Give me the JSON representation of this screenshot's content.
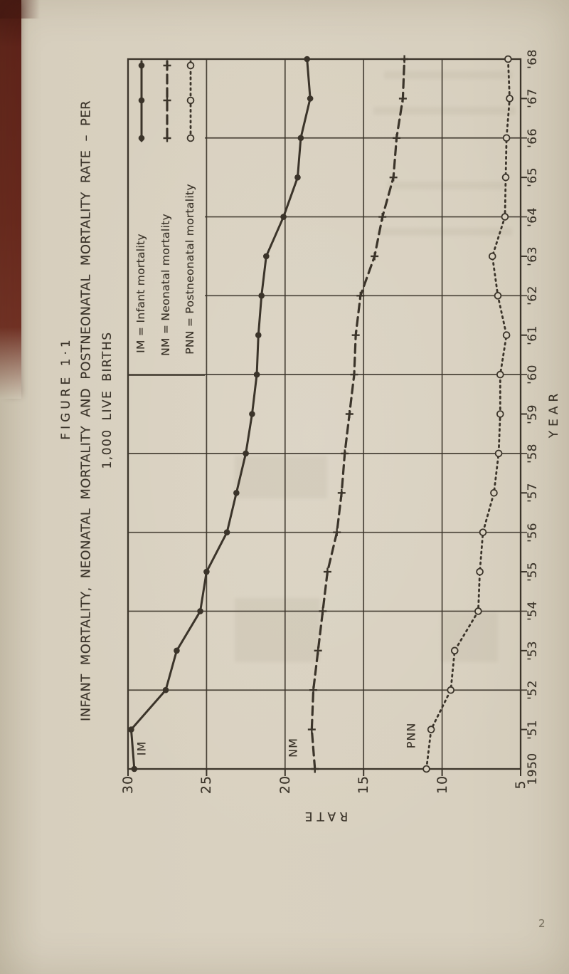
{
  "page": {
    "page_number": "2"
  },
  "figure": {
    "figure_label": "FIGURE 1·1",
    "title_line_1": "INFANT MORTALITY, NEONATAL MORTALITY AND POSTNEONATAL MORTALITY RATE – PER",
    "title_line_2": "1,000 LIVE BIRTHS",
    "x_axis_label": "YEAR",
    "y_axis_label": "RATE"
  },
  "legend": {
    "entries": [
      {
        "abbr": "IM",
        "label": "IM = Infant mortality",
        "style": "solid-dot"
      },
      {
        "abbr": "NM",
        "label": "NM = Neonatal mortality",
        "style": "dashed-plus"
      },
      {
        "abbr": "PNN",
        "label": "PNN = Postneonatal mortality",
        "style": "dotted-circle"
      }
    ]
  },
  "chart_data": {
    "type": "line",
    "title": "FIGURE 1·1 — INFANT MORTALITY, NEONATAL MORTALITY AND POSTNEONATAL MORTALITY RATE – PER 1,000 LIVE BIRTHS",
    "xlabel": "YEAR",
    "ylabel": "RATE",
    "orientation": "figure rotated 90 degrees counterclockwise on the page",
    "x": [
      1950,
      1951,
      1952,
      1953,
      1954,
      1955,
      1956,
      1957,
      1958,
      1959,
      1960,
      1961,
      1962,
      1963,
      1964,
      1965,
      1966,
      1967,
      1968
    ],
    "x_tick_labels": [
      "1950",
      "'51",
      "'52",
      "'53",
      "'54",
      "'55",
      "'56",
      "'57",
      "'58",
      "'59",
      "'60",
      "'61",
      "'62",
      "'63",
      "'64",
      "'65",
      "'66",
      "'67",
      "'68"
    ],
    "y_ticks": [
      30,
      25,
      20,
      15,
      10,
      5
    ],
    "xlim": [
      1950,
      1968
    ],
    "ylim": [
      5,
      30
    ],
    "grid": "rate lines every 5 units; year lines every 2 years",
    "legend_position": "top-right cell of plot",
    "series": [
      {
        "name": "IM",
        "marker": "filled-dot",
        "line": "solid",
        "values": [
          29.6,
          29.8,
          27.6,
          26.9,
          25.4,
          25.0,
          23.7,
          23.1,
          22.5,
          22.1,
          21.8,
          21.7,
          21.5,
          21.2,
          20.1,
          19.2,
          19.0,
          18.4,
          18.6
        ]
      },
      {
        "name": "NM",
        "marker": "plus",
        "line": "dashed",
        "values": [
          18.1,
          18.3,
          18.2,
          17.9,
          17.6,
          17.3,
          16.7,
          16.4,
          16.2,
          15.9,
          15.6,
          15.5,
          15.2,
          14.3,
          13.8,
          13.1,
          12.9,
          12.5,
          12.4
        ]
      },
      {
        "name": "PNN",
        "marker": "open-circle",
        "line": "dotted",
        "values": [
          11.0,
          10.7,
          9.45,
          9.2,
          7.7,
          7.6,
          7.4,
          6.7,
          6.4,
          6.3,
          6.3,
          5.9,
          6.45,
          6.8,
          6.0,
          5.95,
          5.9,
          5.7,
          5.8
        ]
      }
    ],
    "curve_labels": [
      "IM",
      "NM",
      "PNN"
    ]
  },
  "colors": {
    "paper": "#d8d0bf",
    "ink": "#3b342a",
    "spine": "#5f231a"
  }
}
